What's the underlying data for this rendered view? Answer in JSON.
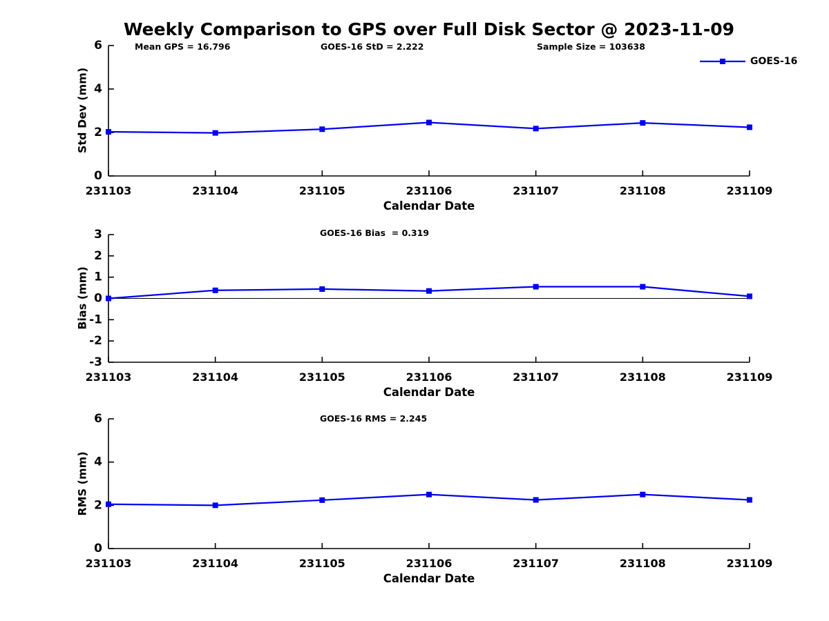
{
  "page": {
    "title": "Weekly Comparison to GPS over Full Disk Sector @ 2023-11-09"
  },
  "colors": {
    "series": "#0000ee",
    "axis": "#000000",
    "text": "#000000",
    "zero_line": "#000000",
    "background": "#ffffff"
  },
  "chart_data": [
    {
      "type": "line",
      "title": "",
      "ylabel": "Std Dev (mm)",
      "xlabel": "Calendar Date",
      "categories": [
        "231103",
        "231104",
        "231105",
        "231106",
        "231107",
        "231108",
        "231109"
      ],
      "series": [
        {
          "name": "GOES-16",
          "values": [
            2.03,
            1.98,
            2.15,
            2.46,
            2.18,
            2.44,
            2.24
          ]
        }
      ],
      "ylim": [
        0,
        6
      ],
      "yticks": [
        0,
        2,
        4,
        6
      ],
      "grid": false,
      "zero_line": false,
      "legend_position": "top-right",
      "marker": "square",
      "annotations": {
        "mean_gps": "Mean GPS = 16.796",
        "std": "GOES-16 StD = 2.222",
        "sample_size": "Sample Size = 103638"
      }
    },
    {
      "type": "line",
      "title": "GOES-16 Bias  = 0.319",
      "ylabel": "Bias (mm)",
      "xlabel": "Calendar Date",
      "categories": [
        "231103",
        "231104",
        "231105",
        "231106",
        "231107",
        "231108",
        "231109"
      ],
      "series": [
        {
          "name": "GOES-16",
          "values": [
            0.0,
            0.38,
            0.44,
            0.35,
            0.55,
            0.55,
            0.1
          ]
        }
      ],
      "ylim": [
        -3,
        3
      ],
      "yticks": [
        -3,
        -2,
        -1,
        0,
        1,
        2,
        3
      ],
      "grid": false,
      "zero_line": true,
      "marker": "square"
    },
    {
      "type": "line",
      "title": "GOES-16 RMS = 2.245",
      "ylabel": "RMS (mm)",
      "xlabel": "Calendar Date",
      "categories": [
        "231103",
        "231104",
        "231105",
        "231106",
        "231107",
        "231108",
        "231109"
      ],
      "series": [
        {
          "name": "GOES-16",
          "values": [
            2.05,
            2.0,
            2.24,
            2.5,
            2.25,
            2.5,
            2.25
          ]
        }
      ],
      "ylim": [
        0,
        6
      ],
      "yticks": [
        0,
        2,
        4,
        6
      ],
      "grid": false,
      "zero_line": false,
      "marker": "square"
    }
  ]
}
